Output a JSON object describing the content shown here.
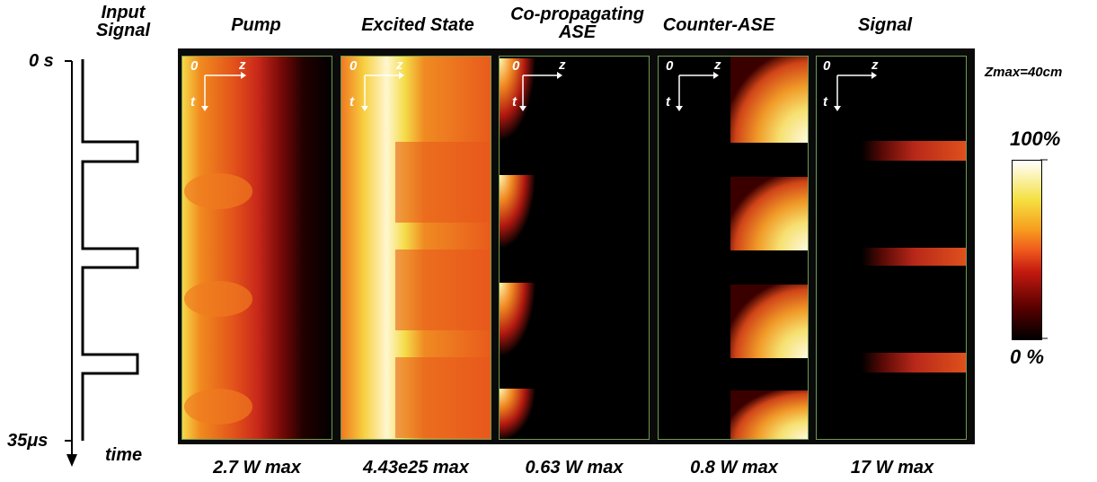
{
  "input_signal": {
    "title_line1": "Input",
    "title_line2": "Signal",
    "start_label": "0 s",
    "end_label": "35μs",
    "axis_label": "time"
  },
  "panels": [
    {
      "title": "Pump",
      "max_label": "2.7 W max"
    },
    {
      "title_line1": "Excited State",
      "max_label": "4.43e25 max"
    },
    {
      "title_line1": "Co-propagating",
      "title_line2": "ASE",
      "max_label": "0.63 W max"
    },
    {
      "title": "Counter-ASE",
      "max_label": "0.8 W max"
    },
    {
      "title": "Signal",
      "max_label": "17 W max"
    }
  ],
  "axes": {
    "origin": "0",
    "z": "z",
    "t": "t"
  },
  "zmax_label": "Zmax=40cm",
  "colorbar": {
    "top_label": "100%",
    "bottom_label": "0 %",
    "colors": [
      "#000000",
      "#5a0000",
      "#c41a10",
      "#f05a1c",
      "#f7a020",
      "#f5e040",
      "#ffffff"
    ]
  }
}
